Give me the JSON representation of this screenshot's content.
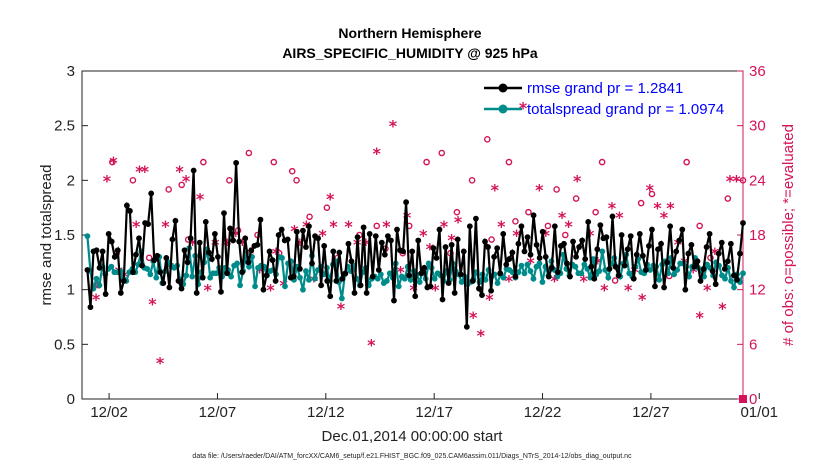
{
  "chart_data": {
    "type": "line",
    "title": "Northern Hemisphere",
    "subtitle": "AIRS_SPECIFIC_HUMIDITY @ 925 hPa",
    "xlabel": "Dec.01,2014 00:00:00 start",
    "ylabel": "rmse and totalspread",
    "y2label": "# of obs: o=possible; *=evaluated",
    "footnote": "data file: /Users/raeder/DAI/ATM_forcXX/CAM6_setup/f.e21.FHIST_BGC.f09_025.CAM6assim.011/Diags_NTrS_2014-12/obs_diag_output.nc",
    "xlim": [
      0.5,
      31.0
    ],
    "ylim": [
      0,
      3
    ],
    "y2lim": [
      0,
      36
    ],
    "xticks": [
      1.75,
      6.75,
      11.75,
      16.75,
      21.75,
      26.75,
      31.75
    ],
    "xtick_labels": [
      "12/02",
      "12/07",
      "12/12",
      "12/17",
      "12/22",
      "12/27",
      "01/01"
    ],
    "yticks": [
      0,
      0.5,
      1,
      1.5,
      2,
      2.5,
      3
    ],
    "ytick_labels": [
      "0",
      "0.5",
      "1",
      "1.5",
      "2",
      "2.5",
      "3"
    ],
    "y2ticks": [
      0,
      6,
      12,
      18,
      24,
      30,
      36
    ],
    "y2tick_labels": [
      "0",
      "6",
      "12",
      "18",
      "24",
      "30",
      "36"
    ],
    "legend_position": "top-right",
    "colors": {
      "rmse": "#000000",
      "spread": "#008b8b",
      "obs": "#d4145a"
    },
    "series": [
      {
        "name": "rmse grand pr = 1.2841",
        "color": "#000000",
        "values": [
          1.18,
          0.84,
          1.35,
          1.36,
          1.2,
          1.35,
          0.96,
          1.51,
          1.44,
          1.3,
          1.36,
          0.97,
          1.08,
          1.77,
          1.72,
          1.16,
          1.32,
          1.47,
          1.22,
          1.61,
          1.6,
          1.88,
          1.27,
          1.31,
          1.16,
          1.06,
          1.29,
          1.02,
          1.46,
          1.63,
          1.08,
          1.01,
          1.36,
          1.25,
          1.47,
          2.09,
          0.97,
          1.43,
          1.11,
          1.62,
          1.34,
          1.28,
          1.51,
          1.3,
          0.98,
          1.7,
          1.15,
          1.56,
          1.45,
          2.16,
          1.44,
          1.16,
          1.47,
          1.25,
          1.36,
          1.4,
          1.41,
          1.64,
          1.0,
          1.13,
          1.35,
          1.27,
          1.08,
          1.5,
          1.55,
          1.45,
          1.46,
          1.11,
          1.12,
          1.53,
          1.19,
          1.54,
          1.39,
          1.58,
          1.24,
          1.49,
          1.47,
          1.04,
          1.4,
          1.08,
          0.94,
          1.35,
          1.08,
          1.34,
          1.1,
          1.15,
          1.42,
          1.26,
          0.97,
          1.48,
          1.04,
          1.57,
          0.97,
          1.51,
          1.12,
          1.49,
          1.18,
          1.43,
          1.32,
          1.49,
          1.45,
          0.9,
          1.55,
          1.36,
          1.35,
          1.8,
          1.13,
          1.35,
          0.94,
          1.45,
          1.15,
          1.2,
          1.02,
          1.03,
          1.38,
          1.29,
          1.55,
          0.91,
          1.39,
          1.06,
          1.41,
          0.97,
          1.46,
          1.14,
          1.35,
          0.66,
          1.58,
          1.08,
          1.65,
          1.01,
          0.95,
          1.44,
          1.39,
          0.99,
          1.3,
          1.38,
          1.15,
          1.51,
          1.23,
          1.28,
          1.34,
          1.12,
          1.42,
          1.58,
          1.35,
          1.48,
          1.32,
          1.68,
          1.41,
          1.29,
          1.53,
          1.3,
          1.12,
          1.2,
          1.58,
          1.16,
          1.4,
          1.42,
          1.24,
          1.12,
          1.44,
          1.3,
          1.39,
          1.45,
          1.28,
          1.62,
          1.21,
          1.1,
          1.37,
          1.59,
          1.47,
          1.48,
          1.19,
          1.67,
          1.21,
          1.13,
          1.5,
          1.22,
          1.37,
          1.49,
          1.1,
          1.32,
          1.51,
          1.31,
          1.18,
          1.4,
          1.55,
          1.03,
          1.37,
          1.42,
          1.02,
          1.25,
          1.58,
          1.2,
          1.35,
          1.45,
          1.55,
          1.0,
          1.33,
          1.41,
          1.21,
          1.26,
          1.08,
          1.19,
          1.39,
          1.51,
          1.17,
          1.05,
          1.33,
          1.43,
          1.19,
          1.26,
          1.42,
          1.13,
          1.09,
          1.33,
          1.61
        ]
      },
      {
        "name": "totalspread grand pr = 1.0974",
        "color": "#008b8b",
        "values": [
          1.49,
          1.17,
          1.01,
          1.1,
          1.04,
          1.21,
          1.14,
          1.19,
          1.21,
          1.16,
          1.16,
          1.17,
          1.1,
          1.08,
          1.16,
          1.19,
          1.16,
          1.23,
          1.35,
          1.2,
          1.19,
          1.14,
          1.26,
          1.11,
          1.3,
          1.06,
          1.17,
          1.25,
          1.22,
          1.2,
          1.22,
          1.09,
          1.05,
          1.13,
          1.38,
          1.12,
          1.31,
          1.05,
          1.16,
          1.25,
          1.37,
          1.11,
          1.15,
          1.15,
          1.2,
          1.12,
          1.2,
          1.18,
          1.12,
          1.22,
          1.24,
          1.04,
          1.17,
          1.33,
          1.21,
          1.3,
          1.03,
          1.2,
          1.22,
          1.21,
          1.13,
          1.17,
          1.18,
          1.14,
          1.3,
          1.29,
          1.03,
          1.24,
          1.26,
          1.09,
          1.21,
          1.11,
          1.0,
          1.17,
          1.09,
          1.31,
          1.1,
          1.18,
          1.21,
          1.14,
          1.2,
          1.08,
          1.23,
          1.26,
          1.07,
          0.92,
          1.14,
          1.21,
          1.17,
          1.22,
          1.1,
          1.04,
          1.16,
          1.2,
          1.04,
          1.1,
          1.12,
          1.1,
          1.14,
          1.06,
          1.08,
          1.15,
          1.11,
          1.24,
          1.03,
          1.12,
          1.1,
          1.21,
          1.09,
          1.17,
          1.14,
          1.07,
          1.17,
          1.1,
          1.24,
          1.2,
          1.1,
          1.15,
          1.13,
          1.08,
          1.17,
          1.09,
          1.24,
          1.17,
          1.14,
          1.07,
          1.12,
          1.05,
          1.07,
          1.1,
          1.16,
          1.07,
          1.14,
          1.09,
          1.18,
          1.12,
          1.14,
          1.06,
          1.14,
          1.11,
          1.19,
          1.18,
          1.16,
          1.11,
          1.16,
          1.22,
          1.15,
          1.23,
          1.17,
          1.1,
          1.21,
          1.24,
          1.07,
          1.21,
          1.13,
          1.26,
          1.18,
          1.12,
          1.15,
          1.32,
          1.19,
          1.13,
          1.23,
          1.21,
          1.15,
          1.15,
          1.23,
          1.19,
          1.11,
          1.28,
          1.14,
          1.17,
          1.35,
          1.18,
          1.11,
          1.24,
          1.29,
          1.2,
          1.12,
          1.24,
          1.32,
          1.15,
          1.12,
          1.21,
          1.28,
          1.16,
          1.15,
          1.23,
          1.18,
          1.22,
          1.21,
          1.09,
          1.23,
          1.26,
          1.15,
          1.29,
          1.14,
          1.18,
          1.24,
          1.24,
          1.21,
          1.12,
          1.21,
          1.29,
          1.2,
          1.17,
          1.12,
          1.23,
          1.2,
          1.13,
          1.25,
          1.22,
          1.13,
          1.1,
          1.2,
          1.08,
          1.02,
          1.14,
          1.07,
          1.15
        ]
      }
    ],
    "obs_possible": {
      "x": [
        1.25,
        1.9,
        2.1,
        2.85,
        3.6,
        4.5,
        5.1,
        5.4,
        6.1,
        7.3,
        7.7,
        8.2,
        8.6,
        9.35,
        9.6,
        10.2,
        10.4,
        11.0,
        11.8,
        12.3,
        13.3,
        14.1,
        14.5,
        15.3,
        15.6,
        16.4,
        17.1,
        17.5,
        17.8,
        18.5,
        19.2,
        19.4,
        20.2,
        20.5,
        21.1,
        22.0,
        22.4,
        22.8,
        23.3,
        24.2,
        24.5,
        25.1,
        26.3,
        26.8,
        27.6,
        28.4,
        29.0,
        29.5,
        30.3,
        31.0
      ],
      "values": [
        12.5,
        26,
        16,
        24,
        15.5,
        23,
        23.5,
        17.5,
        26,
        24,
        18.5,
        27,
        18,
        26,
        16,
        25,
        24,
        20,
        21,
        15.5,
        18,
        19,
        16.5,
        16,
        19,
        26,
        27,
        16,
        20.5,
        24,
        28.5,
        17.5,
        26,
        19.5,
        20.5,
        19,
        23,
        18,
        22,
        20.5,
        26,
        13,
        21.5,
        22.5,
        13.5,
        26,
        19,
        15.5,
        22,
        24
      ]
    },
    "obs_evaluated": {
      "x": [
        1.15,
        1.65,
        1.95,
        2.2,
        2.45,
        3.0,
        3.15,
        3.4,
        3.75,
        4.1,
        4.35,
        4.55,
        5.0,
        5.3,
        5.6,
        5.95,
        6.3,
        6.65,
        7.2,
        7.6,
        7.9,
        8.25,
        8.7,
        9.2,
        9.45,
        9.8,
        10.3,
        10.55,
        10.85,
        11.2,
        11.6,
        11.95,
        12.1,
        12.45,
        12.8,
        13.2,
        13.6,
        13.85,
        14.1,
        14.55,
        14.85,
        15.2,
        15.5,
        15.8,
        16.25,
        16.55,
        16.8,
        17.2,
        17.55,
        17.85,
        18.2,
        18.55,
        18.9,
        19.3,
        19.55,
        19.85,
        20.2,
        20.55,
        20.85,
        21.2,
        21.6,
        21.9,
        22.3,
        22.65,
        22.95,
        23.35,
        23.65,
        23.95,
        24.3,
        24.6,
        24.95,
        25.3,
        25.7,
        26.0,
        26.35,
        26.7,
        27.05,
        27.35,
        27.65,
        28.0,
        28.3,
        28.7,
        29.0,
        29.35,
        29.7,
        30.05,
        30.4,
        30.7
      ],
      "values": [
        11,
        24,
        26,
        14,
        13.5,
        19,
        25,
        25,
        10.5,
        4,
        19,
        14.5,
        25,
        24,
        17,
        22,
        12,
        17,
        17,
        18,
        17,
        16,
        14,
        12,
        16,
        12.5,
        18.5,
        17,
        19,
        13,
        18,
        22,
        19,
        10,
        19,
        17,
        17,
        6,
        27,
        19,
        30,
        14,
        20,
        12,
        18,
        16.5,
        12,
        19,
        17.5,
        19.5,
        13,
        9,
        7,
        11,
        23,
        19,
        13,
        18,
        32,
        15,
        23,
        18,
        13,
        20,
        19,
        24,
        13,
        18,
        15,
        12,
        21,
        20,
        12,
        14,
        11,
        23,
        21,
        20,
        21,
        17,
        15,
        14,
        9,
        12,
        16,
        10,
        24,
        24
      ]
    }
  }
}
